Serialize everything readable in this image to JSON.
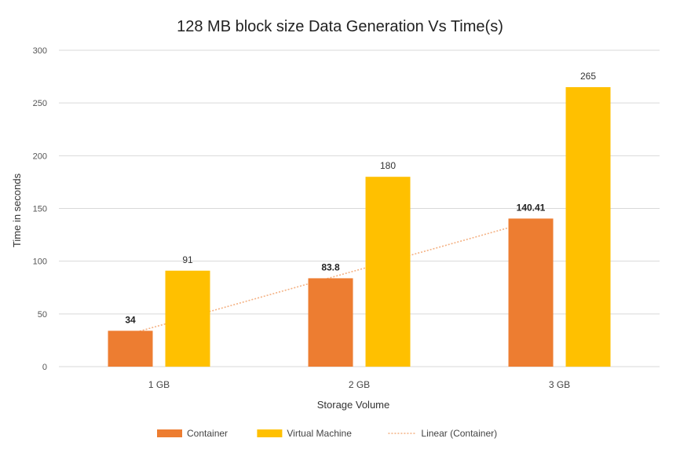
{
  "chart_data": {
    "type": "bar",
    "title": "128 MB block size Data Generation Vs Time(s)",
    "xlabel": "Storage Volume",
    "ylabel": "Time in seconds",
    "ylim": [
      0,
      300
    ],
    "yticks": [
      0,
      50,
      100,
      150,
      200,
      250,
      300
    ],
    "ytick_labels": [
      "0",
      "50",
      "100",
      "150",
      "200",
      "250",
      "300"
    ],
    "grid": true,
    "legend_position": "bottom",
    "categories": [
      "1 GB",
      "2 GB",
      "3 GB"
    ],
    "series": [
      {
        "name": "Container",
        "color": "#ED7D31",
        "values": [
          34,
          83.8,
          140.41
        ],
        "labels": [
          "34",
          "83.8",
          "140.41"
        ]
      },
      {
        "name": "Virtual Machine",
        "color": "#FFC000",
        "values": [
          91,
          180,
          265
        ],
        "labels": [
          "91",
          "180",
          "265"
        ]
      }
    ],
    "trendline": {
      "name": "Linear (Container)",
      "of_series": "Container",
      "color": "#F4B183",
      "style": "dotted"
    }
  }
}
